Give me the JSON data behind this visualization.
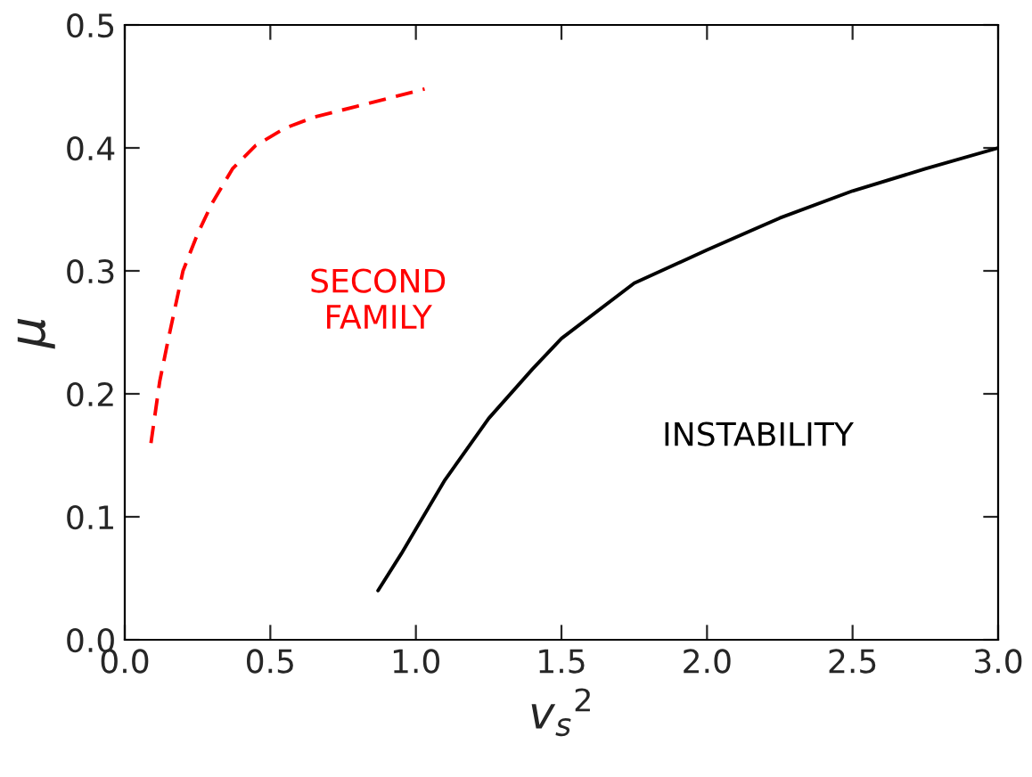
{
  "chart_data": {
    "type": "line",
    "xlabel": "v$_{s}$$^{2}$",
    "ylabel": "μ",
    "series": [
      {
        "x": [
          0.87,
          0.95,
          1.0,
          1.1,
          1.25,
          1.4,
          1.5,
          1.75,
          2.0,
          2.25,
          2.5,
          2.75,
          3.0
        ],
        "values": [
          0.04,
          0.07,
          0.09,
          0.13,
          0.18,
          0.22,
          0.245,
          0.29,
          0.317,
          0.343,
          0.365,
          0.383,
          0.4
        ],
        "color": "#000000",
        "line_style": "solid"
      },
      {
        "x": [
          0.09,
          0.12,
          0.15,
          0.2,
          0.25,
          0.3,
          0.37,
          0.45,
          0.55,
          0.65,
          0.8,
          0.9,
          1.03
        ],
        "values": [
          0.16,
          0.21,
          0.245,
          0.3,
          0.33,
          0.355,
          0.383,
          0.402,
          0.416,
          0.425,
          0.434,
          0.44,
          0.448
        ],
        "color": "#ff0000",
        "line_style": "dashed"
      }
    ],
    "annotations": [
      "SECOND\nFAMILY",
      "INSTABILITY"
    ],
    "xlim": [
      0.0,
      3.0
    ],
    "ylim": [
      0.0,
      0.5
    ],
    "xticks": [
      {
        "value": 0.0,
        "label": "0.0"
      },
      0.5,
      {
        "value": 1.0,
        "label": "1.0"
      },
      1.5,
      {
        "value": 2.0,
        "label": "2.0"
      },
      2.5,
      {
        "value": 3.0,
        "label": "3.0"
      }
    ],
    "yticks": [
      {
        "value": 0.0,
        "label": "0.0"
      },
      0.1,
      0.2,
      0.3,
      0.4,
      0.5
    ],
    "grid": false,
    "legend": false
  }
}
